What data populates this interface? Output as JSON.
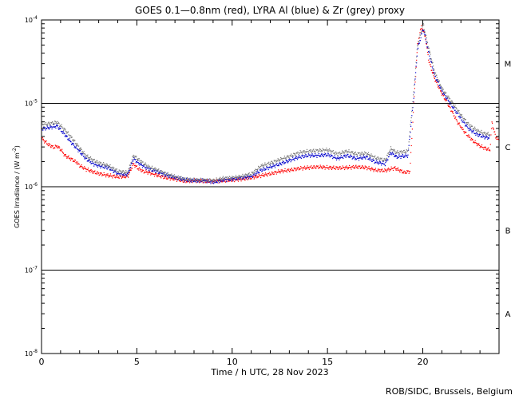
{
  "chart_data": {
    "type": "scatter",
    "title": "GOES 0.1—0.8nm (red), LYRA Al (blue) & Zr (grey) proxy",
    "xlabel": "Time / h UTC, 28 Nov 2023",
    "ylabel_main": "GOES Irradiance / (W m",
    "ylabel_sup": "-2",
    "ylabel_close": ")",
    "ylabel": "GOES Irradiance / (W m-2)",
    "credit": "ROB/SIDC, Brussels, Belgium",
    "xlim": [
      0,
      24
    ],
    "ylim": [
      1e-08,
      0.0001
    ],
    "yscale": "log",
    "grid": false,
    "x_ticks": [
      0,
      5,
      10,
      15,
      20
    ],
    "y_ticks": [
      {
        "value": 1e-08,
        "base": "10",
        "exp": "-8"
      },
      {
        "value": 1e-07,
        "base": "10",
        "exp": "-7"
      },
      {
        "value": 1e-06,
        "base": "10",
        "exp": "-6"
      },
      {
        "value": 1e-05,
        "base": "10",
        "exp": "-5"
      },
      {
        "value": 0.0001,
        "base": "10",
        "exp": "-4"
      }
    ],
    "flare_class_lines": [
      1e-07,
      1e-06,
      1e-05
    ],
    "flare_classes": [
      {
        "label": "A",
        "value": 3e-08
      },
      {
        "label": "B",
        "value": 3e-07
      },
      {
        "label": "C",
        "value": 3e-06
      },
      {
        "label": "M",
        "value": 3e-05
      }
    ],
    "series": [
      {
        "name": "GOES 0.1-0.8nm",
        "color": "#ff0000",
        "points": [
          [
            0.0,
            3.8e-06
          ],
          [
            0.3,
            3.3e-06
          ],
          [
            0.6,
            3e-06
          ],
          [
            0.8,
            3.1e-06
          ],
          [
            1.0,
            2.8e-06
          ],
          [
            1.2,
            2.4e-06
          ],
          [
            1.5,
            2.2e-06
          ],
          [
            1.8,
            2e-06
          ],
          [
            2.0,
            1.8e-06
          ],
          [
            2.3,
            1.65e-06
          ],
          [
            2.6,
            1.55e-06
          ],
          [
            3.0,
            1.45e-06
          ],
          [
            3.5,
            1.38e-06
          ],
          [
            4.0,
            1.33e-06
          ],
          [
            4.5,
            1.35e-06
          ],
          [
            4.8,
            1.9e-06
          ],
          [
            5.0,
            1.7e-06
          ],
          [
            5.3,
            1.55e-06
          ],
          [
            5.6,
            1.5e-06
          ],
          [
            6.0,
            1.4e-06
          ],
          [
            6.5,
            1.3e-06
          ],
          [
            7.0,
            1.25e-06
          ],
          [
            7.5,
            1.18e-06
          ],
          [
            8.0,
            1.2e-06
          ],
          [
            8.5,
            1.18e-06
          ],
          [
            9.0,
            1.18e-06
          ],
          [
            9.5,
            1.2e-06
          ],
          [
            10.0,
            1.22e-06
          ],
          [
            10.5,
            1.25e-06
          ],
          [
            11.0,
            1.3e-06
          ],
          [
            11.5,
            1.38e-06
          ],
          [
            12.0,
            1.45e-06
          ],
          [
            12.5,
            1.55e-06
          ],
          [
            13.0,
            1.6e-06
          ],
          [
            13.5,
            1.68e-06
          ],
          [
            14.0,
            1.72e-06
          ],
          [
            14.5,
            1.75e-06
          ],
          [
            15.0,
            1.72e-06
          ],
          [
            15.5,
            1.7e-06
          ],
          [
            16.0,
            1.72e-06
          ],
          [
            16.5,
            1.75e-06
          ],
          [
            17.0,
            1.72e-06
          ],
          [
            17.5,
            1.6e-06
          ],
          [
            18.0,
            1.58e-06
          ],
          [
            18.5,
            1.7e-06
          ],
          [
            19.0,
            1.5e-06
          ],
          [
            19.3,
            1.55e-06
          ],
          [
            19.5,
            1e-05
          ],
          [
            19.7,
            5e-05
          ],
          [
            19.9,
            8.5e-05
          ],
          [
            20.1,
            6.5e-05
          ],
          [
            20.3,
            3.2e-05
          ],
          [
            20.6,
            2e-05
          ],
          [
            21.0,
            1.3e-05
          ],
          [
            21.4,
            9e-06
          ],
          [
            21.8,
            6e-06
          ],
          [
            22.2,
            4.5e-06
          ],
          [
            22.6,
            3.6e-06
          ],
          [
            23.0,
            3.1e-06
          ],
          [
            23.3,
            2.9e-06
          ],
          [
            23.5,
            2.8e-06
          ],
          [
            23.6,
            6e-06
          ],
          [
            23.8,
            4e-06
          ],
          [
            24.0,
            3.6e-06
          ]
        ]
      },
      {
        "name": "LYRA Al proxy",
        "color": "#0000cc",
        "points": [
          [
            0.0,
            5e-06
          ],
          [
            0.8,
            5.4e-06
          ],
          [
            1.0,
            4.8e-06
          ],
          [
            1.3,
            4e-06
          ],
          [
            1.6,
            3.3e-06
          ],
          [
            1.9,
            2.8e-06
          ],
          [
            2.3,
            2.2e-06
          ],
          [
            2.7,
            1.9e-06
          ],
          [
            3.0,
            1.8e-06
          ],
          [
            3.5,
            1.7e-06
          ],
          [
            4.0,
            1.45e-06
          ],
          [
            4.5,
            1.42e-06
          ],
          [
            4.8,
            2.2e-06
          ],
          [
            5.0,
            2e-06
          ],
          [
            5.3,
            1.8e-06
          ],
          [
            5.6,
            1.65e-06
          ],
          [
            6.0,
            1.55e-06
          ],
          [
            6.5,
            1.4e-06
          ],
          [
            7.0,
            1.3e-06
          ],
          [
            7.5,
            1.22e-06
          ],
          [
            8.0,
            1.2e-06
          ],
          [
            8.5,
            1.2e-06
          ],
          [
            9.0,
            1.15e-06
          ],
          [
            9.5,
            1.22e-06
          ],
          [
            10.0,
            1.25e-06
          ],
          [
            10.5,
            1.3e-06
          ],
          [
            11.0,
            1.35e-06
          ],
          [
            11.5,
            1.6e-06
          ],
          [
            12.0,
            1.75e-06
          ],
          [
            12.5,
            1.9e-06
          ],
          [
            13.0,
            2.1e-06
          ],
          [
            13.5,
            2.3e-06
          ],
          [
            14.0,
            2.4e-06
          ],
          [
            14.5,
            2.4e-06
          ],
          [
            15.0,
            2.45e-06
          ],
          [
            15.5,
            2.2e-06
          ],
          [
            16.0,
            2.4e-06
          ],
          [
            16.5,
            2.2e-06
          ],
          [
            17.0,
            2.3e-06
          ],
          [
            17.5,
            2e-06
          ],
          [
            18.0,
            1.9e-06
          ],
          [
            18.3,
            2.6e-06
          ],
          [
            18.6,
            2.3e-06
          ],
          [
            19.2,
            2.4e-06
          ],
          [
            19.5,
            1.2e-05
          ],
          [
            19.7,
            4.5e-05
          ],
          [
            20.0,
            8e-05
          ],
          [
            20.3,
            4e-05
          ],
          [
            20.6,
            2.2e-05
          ],
          [
            21.0,
            1.4e-05
          ],
          [
            21.5,
            9.5e-06
          ],
          [
            22.0,
            6.5e-06
          ],
          [
            22.4,
            5e-06
          ],
          [
            22.8,
            4.3e-06
          ],
          [
            23.2,
            4e-06
          ],
          [
            23.5,
            3.9e-06
          ]
        ]
      },
      {
        "name": "LYRA Zr proxy",
        "color": "#7a7a7a",
        "points": [
          [
            0.0,
            5.6e-06
          ],
          [
            0.8,
            6e-06
          ],
          [
            1.0,
            5.4e-06
          ],
          [
            1.3,
            4.6e-06
          ],
          [
            1.6,
            3.8e-06
          ],
          [
            1.9,
            3.1e-06
          ],
          [
            2.3,
            2.4e-06
          ],
          [
            2.7,
            2.1e-06
          ],
          [
            3.0,
            1.95e-06
          ],
          [
            3.5,
            1.8e-06
          ],
          [
            4.0,
            1.55e-06
          ],
          [
            4.5,
            1.5e-06
          ],
          [
            4.8,
            2.4e-06
          ],
          [
            5.0,
            2.2e-06
          ],
          [
            5.3,
            1.95e-06
          ],
          [
            5.6,
            1.75e-06
          ],
          [
            6.0,
            1.62e-06
          ],
          [
            6.5,
            1.45e-06
          ],
          [
            7.0,
            1.33e-06
          ],
          [
            7.5,
            1.25e-06
          ],
          [
            8.0,
            1.22e-06
          ],
          [
            8.5,
            1.22e-06
          ],
          [
            9.0,
            1.2e-06
          ],
          [
            9.5,
            1.28e-06
          ],
          [
            10.0,
            1.3e-06
          ],
          [
            10.5,
            1.35e-06
          ],
          [
            11.0,
            1.45e-06
          ],
          [
            11.5,
            1.8e-06
          ],
          [
            12.0,
            1.95e-06
          ],
          [
            12.5,
            2.15e-06
          ],
          [
            13.0,
            2.35e-06
          ],
          [
            13.5,
            2.6e-06
          ],
          [
            14.0,
            2.7e-06
          ],
          [
            14.5,
            2.75e-06
          ],
          [
            15.0,
            2.8e-06
          ],
          [
            15.5,
            2.5e-06
          ],
          [
            16.0,
            2.7e-06
          ],
          [
            16.5,
            2.5e-06
          ],
          [
            17.0,
            2.55e-06
          ],
          [
            17.5,
            2.25e-06
          ],
          [
            18.0,
            2.1e-06
          ],
          [
            18.3,
            2.9e-06
          ],
          [
            18.6,
            2.6e-06
          ],
          [
            19.2,
            2.7e-06
          ],
          [
            19.5,
            1.4e-05
          ],
          [
            19.7,
            5e-05
          ],
          [
            20.0,
            9e-05
          ],
          [
            20.3,
            4.5e-05
          ],
          [
            20.6,
            2.4e-05
          ],
          [
            21.0,
            1.5e-05
          ],
          [
            21.5,
            1.05e-05
          ],
          [
            22.0,
            7.2e-06
          ],
          [
            22.4,
            5.6e-06
          ],
          [
            22.8,
            4.8e-06
          ],
          [
            23.2,
            4.4e-06
          ],
          [
            23.5,
            4.3e-06
          ]
        ]
      }
    ]
  }
}
